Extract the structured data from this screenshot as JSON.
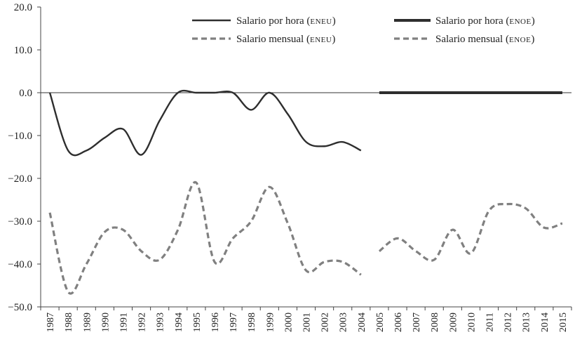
{
  "chart_data": {
    "type": "line",
    "x": [
      "1987",
      "1988",
      "1989",
      "1990",
      "1991",
      "1992",
      "1993",
      "1994",
      "1995",
      "1996",
      "1997",
      "1998",
      "1999",
      "2000",
      "2001",
      "2002",
      "2003",
      "2004",
      "2005",
      "2006",
      "2007",
      "2008",
      "2009",
      "2010",
      "2011",
      "2012",
      "2013",
      "2014",
      "2015"
    ],
    "ylim": [
      -50.0,
      20.0
    ],
    "yticks": [
      "20.0",
      "10.0",
      "0.0",
      "−10.0",
      "−20.0",
      "−30.0",
      "−40.0",
      "−50.0"
    ],
    "ytick_values": [
      20,
      10,
      0,
      -10,
      -20,
      -30,
      -40,
      -50
    ],
    "grid": false,
    "zero_line": true,
    "legend_position": "top",
    "series": [
      {
        "name": "Salario por hora",
        "source": "ENEU",
        "style": "solid-thin",
        "color": "#2e2e2e",
        "values": [
          0.0,
          -13.5,
          -13.5,
          -10.5,
          -8.5,
          -14.5,
          -6.5,
          0.0,
          0.0,
          0.0,
          0.0,
          -4.0,
          0.0,
          -5.0,
          -11.5,
          -12.5,
          -11.5,
          -13.5,
          null,
          null,
          null,
          null,
          null,
          null,
          null,
          null,
          null,
          null,
          null
        ]
      },
      {
        "name": "Salario por hora",
        "source": "ENOE",
        "style": "solid-thick",
        "color": "#2e2e2e",
        "values": [
          null,
          null,
          null,
          null,
          null,
          null,
          null,
          null,
          null,
          null,
          null,
          null,
          null,
          null,
          null,
          null,
          null,
          null,
          0.0,
          0.0,
          0.0,
          0.0,
          0.0,
          0.0,
          0.0,
          0.0,
          0.0,
          0.0,
          0.0
        ]
      },
      {
        "name": "Salario mensual",
        "source": "ENEU",
        "style": "dashed",
        "color": "#808080",
        "values": [
          -28.0,
          -46.5,
          -40.0,
          -32.5,
          -32.0,
          -37.0,
          -39.0,
          -32.0,
          -21.0,
          -39.5,
          -34.0,
          -30.0,
          -22.0,
          -30.5,
          -41.5,
          -39.5,
          -39.5,
          -42.5,
          null,
          null,
          null,
          null,
          null,
          null,
          null,
          null,
          null,
          null,
          null
        ]
      },
      {
        "name": "Salario mensual",
        "source": "ENOE",
        "style": "dashed",
        "color": "#808080",
        "values": [
          null,
          null,
          null,
          null,
          null,
          null,
          null,
          null,
          null,
          null,
          null,
          null,
          null,
          null,
          null,
          null,
          null,
          null,
          -37.0,
          -34.0,
          -37.0,
          -39.0,
          -32.0,
          -37.5,
          -27.5,
          -26.0,
          -27.0,
          -31.5,
          -30.5
        ]
      }
    ]
  }
}
